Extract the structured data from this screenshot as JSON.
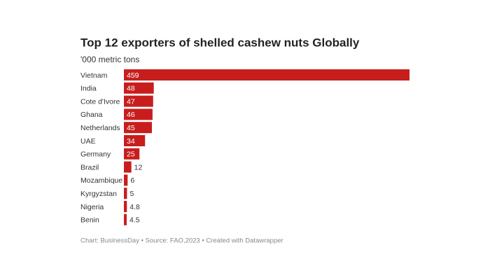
{
  "chart_data": {
    "type": "bar",
    "orientation": "horizontal",
    "title": "Top 12 exporters of shelled cashew nuts Globally",
    "subtitle": "'000 metric tons",
    "categories": [
      "Vietnam",
      "India",
      "Cote d'Ivore",
      "Ghana",
      "Netherlands",
      "UAE",
      "Germany",
      "Brazil",
      "Mozambique",
      "Kyrgyzstan",
      "Nigeria",
      "Benin"
    ],
    "values": [
      459,
      48,
      47,
      46,
      45,
      34,
      25,
      12,
      6,
      5,
      4.8,
      4.5
    ],
    "color": "#c71e1d",
    "footer": "Chart: BusinessDay • Source: FAO,2023 • Created with Datawrapper"
  }
}
